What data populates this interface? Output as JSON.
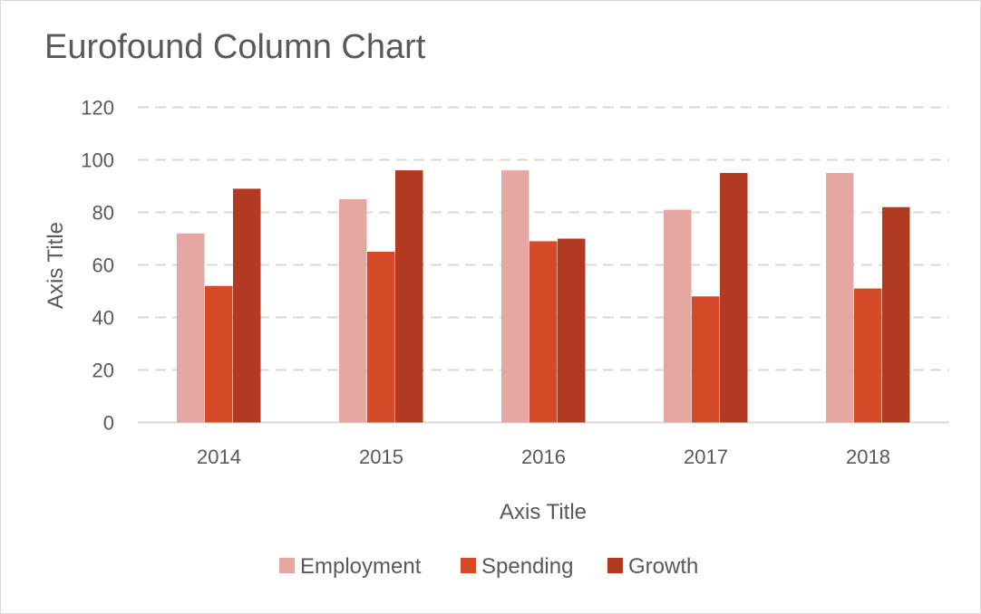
{
  "chart_data": {
    "type": "bar",
    "title": "Eurofound Column Chart",
    "xlabel": "Axis Title",
    "ylabel": "Axis Title",
    "categories": [
      "2014",
      "2015",
      "2016",
      "2017",
      "2018"
    ],
    "series": [
      {
        "name": "Employment",
        "color": "#e5a7a1",
        "values": [
          72,
          85,
          96,
          81,
          95
        ]
      },
      {
        "name": "Spending",
        "color": "#d54a29",
        "values": [
          52,
          65,
          69,
          48,
          51
        ]
      },
      {
        "name": "Growth",
        "color": "#b23a20",
        "values": [
          89,
          96,
          70,
          95,
          82
        ]
      }
    ],
    "ylim": [
      0,
      120
    ],
    "yticks": [
      0,
      20,
      40,
      60,
      80,
      100,
      120
    ],
    "grid": true,
    "legend_position": "bottom"
  }
}
